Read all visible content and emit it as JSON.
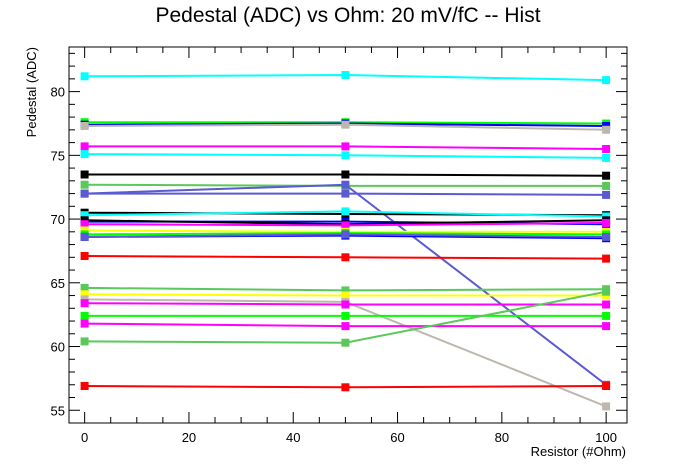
{
  "chart_data": {
    "type": "line",
    "title": "Pedestal (ADC) vs Ohm: 20 mV/fC -- Hist",
    "xlabel": "Resistor (#Ohm)",
    "ylabel": "Pedestal (ADC)",
    "xlim": [
      -3,
      104
    ],
    "ylim": [
      54,
      83.5
    ],
    "x_ticks": [
      0,
      20,
      40,
      60,
      80,
      100
    ],
    "y_ticks": [
      55,
      60,
      65,
      70,
      75,
      80
    ],
    "x": [
      0,
      50,
      100
    ],
    "grid": false,
    "series": [
      {
        "color": "#00ffff",
        "values": [
          81.2,
          81.3,
          80.9
        ]
      },
      {
        "color": "#00ff00",
        "values": [
          77.6,
          77.6,
          77.5
        ]
      },
      {
        "color": "#0000ff",
        "values": [
          77.4,
          77.5,
          77.3
        ]
      },
      {
        "color": "#bdb7ae",
        "values": [
          77.3,
          77.4,
          77.0
        ]
      },
      {
        "color": "#ff00ff",
        "values": [
          75.7,
          75.7,
          75.5
        ]
      },
      {
        "color": "#00ffff",
        "values": [
          75.1,
          75.0,
          74.8
        ]
      },
      {
        "color": "#000000",
        "values": [
          73.5,
          73.5,
          73.4
        ]
      },
      {
        "color": "#5ac85a",
        "values": [
          72.7,
          72.6,
          72.6
        ]
      },
      {
        "color": "#5a5ad2",
        "values": [
          72.0,
          72.7,
          57.0
        ]
      },
      {
        "color": "#5a5ad2",
        "values": [
          72.0,
          72.0,
          71.9
        ]
      },
      {
        "color": "#000000",
        "values": [
          70.5,
          70.4,
          70.3
        ]
      },
      {
        "color": "#00ffff",
        "values": [
          70.3,
          70.6,
          70.2
        ]
      },
      {
        "color": "#0000ff",
        "values": [
          69.8,
          69.8,
          69.6
        ]
      },
      {
        "color": "#000000",
        "values": [
          69.9,
          69.6,
          69.9
        ]
      },
      {
        "color": "#ff00ff",
        "values": [
          69.6,
          69.5,
          69.7
        ]
      },
      {
        "color": "#ffff00",
        "values": [
          69.1,
          69.0,
          69.0
        ]
      },
      {
        "color": "#00ff00",
        "values": [
          68.8,
          68.9,
          68.8
        ]
      },
      {
        "color": "#0000ff",
        "values": [
          68.6,
          68.7,
          68.5
        ]
      },
      {
        "color": "#5a5ad2",
        "values": [
          68.6,
          68.8,
          68.6
        ]
      },
      {
        "color": "#ff0000",
        "values": [
          67.1,
          67.0,
          66.9
        ]
      },
      {
        "color": "#5ac85a",
        "values": [
          64.6,
          64.4,
          64.5
        ]
      },
      {
        "color": "#ffff00",
        "values": [
          64.1,
          64.0,
          64.0
        ]
      },
      {
        "color": "#bdb7ae",
        "values": [
          63.7,
          63.5,
          55.3
        ]
      },
      {
        "color": "#ff00ff",
        "values": [
          63.4,
          63.3,
          63.3
        ]
      },
      {
        "color": "#00ff00",
        "values": [
          62.4,
          62.4,
          62.4
        ]
      },
      {
        "color": "#ff00ff",
        "values": [
          61.8,
          61.6,
          61.6
        ]
      },
      {
        "color": "#5ac85a",
        "values": [
          60.4,
          60.3,
          64.3
        ]
      },
      {
        "color": "#ff0000",
        "values": [
          56.9,
          56.8,
          56.9
        ]
      }
    ]
  }
}
